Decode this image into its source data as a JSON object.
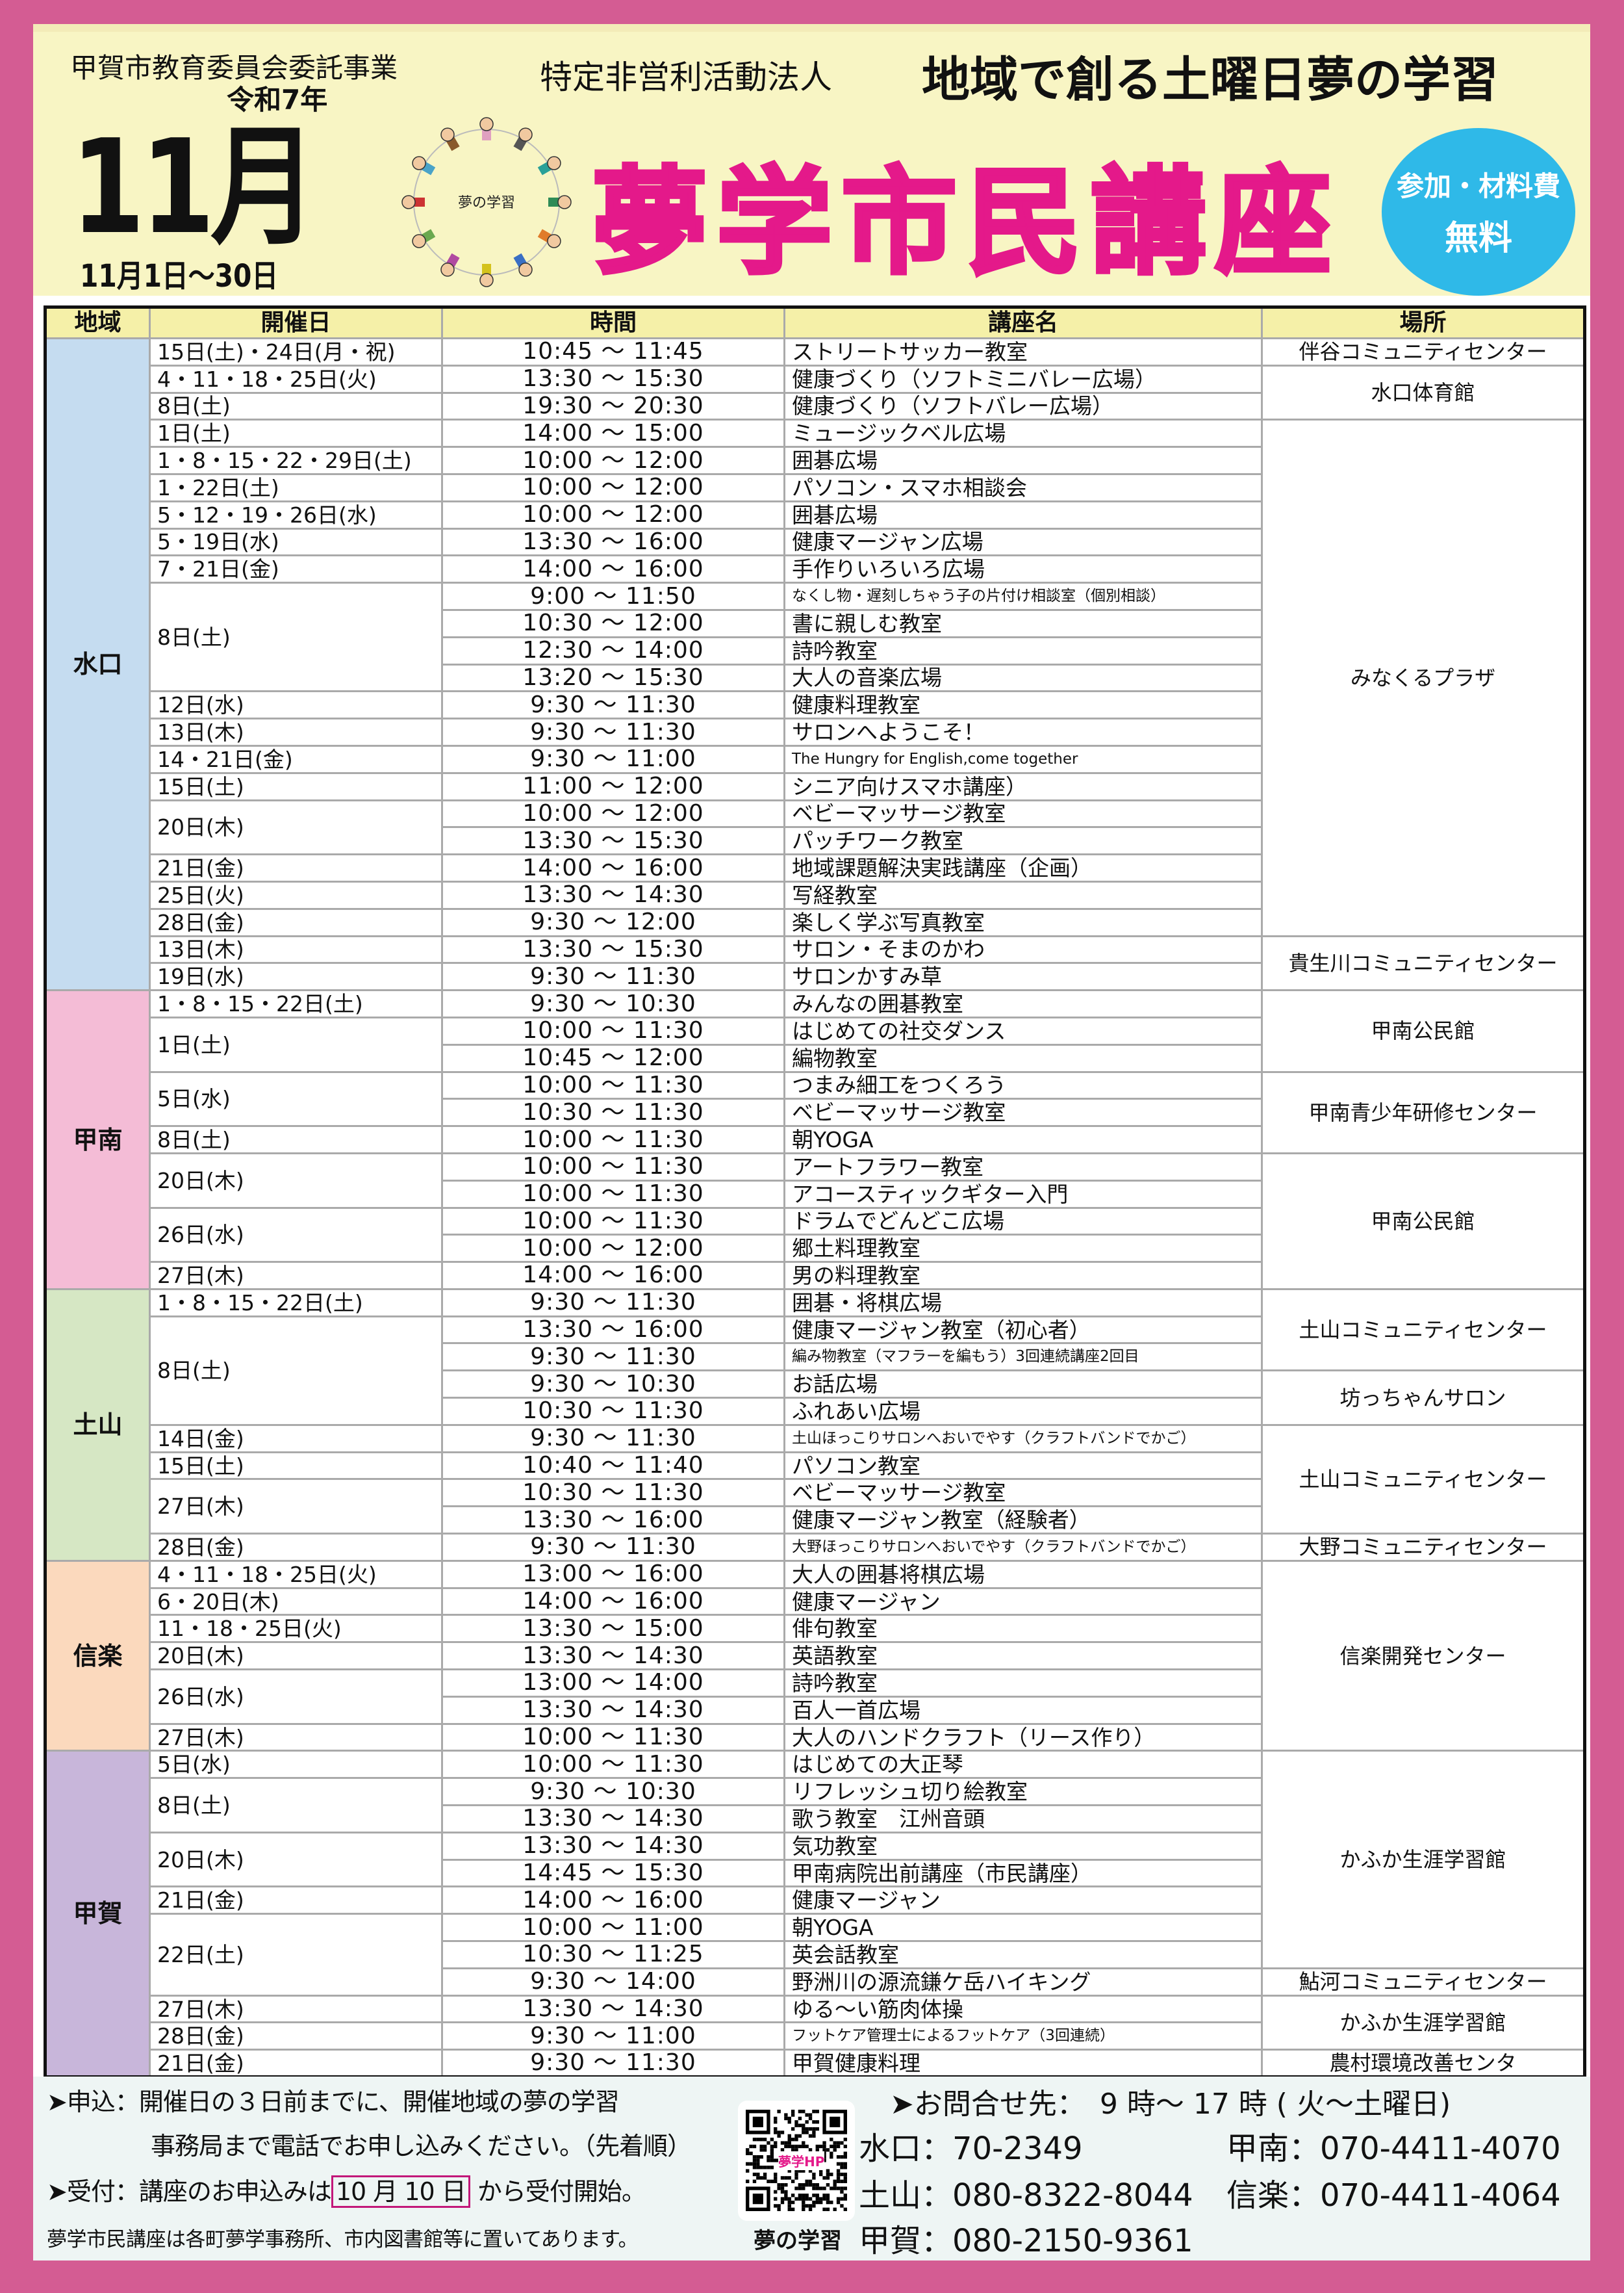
{
  "header": {
    "sponsor": "甲賀市教育委員会委託事業",
    "npo_prefix": "特定非営利活動法人",
    "organization": "地域で創る土曜日夢の学習",
    "era_year": "令和7年",
    "month": "11月",
    "date_range": "11月1日～30日",
    "logo_text": "夢の学習",
    "title": "夢学市民講座",
    "badge_line1": "参加・材料費",
    "badge_line2": "無料",
    "colors": {
      "border": "#d45c93",
      "title": "#e4198a",
      "badge": "#2fb9e8",
      "header_bg": "#f8f5c4"
    }
  },
  "table": {
    "columns": [
      "地域",
      "開催日",
      "時間",
      "講座名",
      "場所"
    ],
    "regions": [
      {
        "name": "水口",
        "color": "#c5dcf0",
        "rows": [
          {
            "date": "15日(土)・24日(月・祝)",
            "time": "10:45 ～ 11:45",
            "course": "ストリートサッカー教室",
            "place": "伴谷コミュニティセンター"
          },
          {
            "date": "4・11・18・25日(火)",
            "time": "13:30 ～ 15:30",
            "course": "健康づくり（ソフトミニバレー広場）",
            "place": "水口体育館"
          },
          {
            "date": "8日(土)",
            "time": "19:30 ～ 20:30",
            "course": "健康づくり（ソフトバレー広場）"
          },
          {
            "date": "1日(土)",
            "time": "14:00 ～ 15:00",
            "course": "ミュージックベル広場",
            "place": "みなくるプラザ"
          },
          {
            "date": "1・8・15・22・29日(土)",
            "time": "10:00 ～ 12:00",
            "course": "囲碁広場"
          },
          {
            "date": "1・22日(土)",
            "time": "10:00 ～ 12:00",
            "course": "パソコン・スマホ相談会"
          },
          {
            "date": "5・12・19・26日(水)",
            "time": "10:00 ～ 12:00",
            "course": "囲碁広場"
          },
          {
            "date": "5・19日(水)",
            "time": "13:30 ～ 16:00",
            "course": "健康マージャン広場"
          },
          {
            "date": "7・21日(金)",
            "time": "14:00 ～ 16:00",
            "course": "手作りいろいろ広場"
          },
          {
            "date": "8日(土)",
            "time": "9:00 ～ 11:50",
            "course": "なくし物・遅刻しちゃう子の片付け相談室（個別相談）"
          },
          {
            "time": "10:30 ～ 12:00",
            "course": "書に親しむ教室"
          },
          {
            "time": "12:30 ～ 14:00",
            "course": "詩吟教室"
          },
          {
            "time": "13:20 ～ 15:30",
            "course": "大人の音楽広場"
          },
          {
            "date": "12日(水)",
            "time": "9:30 ～ 11:30",
            "course": "健康料理教室"
          },
          {
            "date": "13日(木)",
            "time": "9:30 ～ 11:30",
            "course": "サロンへようこそ！"
          },
          {
            "date": "14・21日(金)",
            "time": "9:30 ～ 11:00",
            "course": "The Hungry for English,come together"
          },
          {
            "date": "15日(土)",
            "time": "11:00 ～ 12:00",
            "course": "シニア向けスマホ講座）"
          },
          {
            "date": "20日(木)",
            "time": "10:00 ～ 12:00",
            "course": "ベビーマッサージ教室"
          },
          {
            "time": "13:30 ～ 15:30",
            "course": "パッチワーク教室"
          },
          {
            "date": "21日(金)",
            "time": "14:00 ～ 16:00",
            "course": "地域課題解決実践講座（企画）"
          },
          {
            "date": "25日(火)",
            "time": "13:30 ～ 14:30",
            "course": "写経教室"
          },
          {
            "date": "28日(金)",
            "time": "9:30 ～ 12:00",
            "course": "楽しく学ぶ写真教室"
          },
          {
            "date": "13日(木)",
            "time": "13:30 ～ 15:30",
            "course": "サロン・そまのかわ",
            "place": "貴生川コミュニティセンター"
          },
          {
            "date": "19日(水)",
            "time": "9:30 ～ 11:30",
            "course": "サロンかすみ草"
          }
        ]
      },
      {
        "name": "甲南",
        "color": "#f4bcd6",
        "rows": [
          {
            "date": "1・8・15・22日(土)",
            "time": "9:30 ～ 10:30",
            "course": "みんなの囲碁教室",
            "place": "甲南公民館"
          },
          {
            "date": "1日(土)",
            "time": "10:00 ～ 11:30",
            "course": "はじめての社交ダンス"
          },
          {
            "time": "10:45 ～ 12:00",
            "course": "編物教室"
          },
          {
            "date": "5日(水)",
            "time": "10:00 ～ 11:30",
            "course": "つまみ細工をつくろう",
            "place": "甲南青少年研修センター"
          },
          {
            "time": "10:30 ～ 11:30",
            "course": "ベビーマッサージ教室"
          },
          {
            "date": "8日(土)",
            "time": "10:00 ～ 11:30",
            "course": "朝YOGA"
          },
          {
            "date": "20日(木)",
            "time": "10:00 ～ 11:30",
            "course": "アートフラワー教室",
            "place": "甲南公民館"
          },
          {
            "time": "10:00 ～ 11:30",
            "course": "アコースティックギター入門"
          },
          {
            "date": "26日(水)",
            "time": "10:00 ～ 11:30",
            "course": "ドラムでどんどこ広場"
          },
          {
            "time": "10:00 ～ 12:00",
            "course": "郷土料理教室"
          },
          {
            "date": "27日(木)",
            "time": "14:00 ～ 16:00",
            "course": "男の料理教室"
          }
        ]
      },
      {
        "name": "土山",
        "color": "#d6e7c4",
        "rows": [
          {
            "date": "1・8・15・22日(土)",
            "time": "9:30 ～ 11:30",
            "course": "囲碁・将棋広場",
            "place": "土山コミュニティセンター"
          },
          {
            "date": "8日(土)",
            "time": "13:30 ～ 16:00",
            "course": "健康マージャン教室（初心者）"
          },
          {
            "time": "9:30 ～ 11:30",
            "course": "編み物教室（マフラーを編もう）3回連続講座2回目"
          },
          {
            "time": "9:30 ～ 10:30",
            "course": "お話広場",
            "place": "坊っちゃんサロン"
          },
          {
            "time": "10:30 ～ 11:30",
            "course": "ふれあい広場"
          },
          {
            "date": "14日(金)",
            "time": "9:30 ～ 11:30",
            "course": "土山ほっこりサロンへおいでやす（クラフトバンドでかご）",
            "place": "土山コミュニティセンター"
          },
          {
            "date": "15日(土)",
            "time": "10:40 ～ 11:40",
            "course": "パソコン教室"
          },
          {
            "date": "27日(木)",
            "time": "10:30 ～ 11:30",
            "course": "ベビーマッサージ教室"
          },
          {
            "time": "13:30 ～ 16:00",
            "course": "健康マージャン教室（経験者）"
          },
          {
            "date": "28日(金)",
            "time": "9:30 ～ 11:30",
            "course": "大野ほっこりサロンへおいでやす（クラフトバンドでかご）",
            "place": "大野コミュニティセンター"
          }
        ]
      },
      {
        "name": "信楽",
        "color": "#fbd9bd",
        "rows": [
          {
            "date": "4・11・18・25日(火)",
            "time": "13:00 ～ 16:00",
            "course": "大人の囲碁将棋広場",
            "place": "信楽開発センター"
          },
          {
            "date": "6・20日(木)",
            "time": "14:00 ～ 16:00",
            "course": "健康マージャン"
          },
          {
            "date": "11・18・25日(火)",
            "time": "13:30 ～ 15:00",
            "course": "俳句教室"
          },
          {
            "date": "20日(木)",
            "time": "13:30 ～ 14:30",
            "course": "英語教室"
          },
          {
            "date": "26日(水)",
            "time": "13:00 ～ 14:00",
            "course": "詩吟教室"
          },
          {
            "time": "13:30 ～ 14:30",
            "course": "百人一首広場"
          },
          {
            "date": "27日(木)",
            "time": "10:00 ～ 11:30",
            "course": "大人のハンドクラフト（リース作り）"
          }
        ]
      },
      {
        "name": "甲賀",
        "color": "#c8b6da",
        "rows": [
          {
            "date": "5日(水)",
            "time": "10:00 ～ 11:30",
            "course": "はじめての大正琴",
            "place": "かふか生涯学習館"
          },
          {
            "date": "8日(土)",
            "time": "9:30 ～ 10:30",
            "course": "リフレッシュ切り絵教室"
          },
          {
            "time": "13:30 ～ 14:30",
            "course": "歌う教室　江州音頭"
          },
          {
            "date": "20日(木)",
            "time": "13:30 ～ 14:30",
            "course": "気功教室"
          },
          {
            "time": "14:45 ～ 15:30",
            "course": "甲南病院出前講座（市民講座）"
          },
          {
            "date": "21日(金)",
            "time": "14:00 ～ 16:00",
            "course": "健康マージャン"
          },
          {
            "date": "22日(土)",
            "time": "10:00 ～ 11:00",
            "course": "朝YOGA"
          },
          {
            "time": "10:30 ～ 11:25",
            "course": "英会話教室"
          },
          {
            "time": "9:30 ～ 14:00",
            "course": "野洲川の源流鎌ケ岳ハイキング",
            "place": "鮎河コミュニティセンター"
          },
          {
            "date": "27日(木)",
            "time": "13:30 ～ 14:30",
            "course": "ゆる～い筋肉体操",
            "place": "かふか生涯学習館"
          },
          {
            "date": "28日(金)",
            "time": "9:30 ～ 11:00",
            "course": "フットケア管理士によるフットケア（3回連続）"
          },
          {
            "date": "21日(金)",
            "time": "9:30 ～ 11:30",
            "course": "甲賀健康料理",
            "place": "農村環境改善センタ"
          }
        ]
      }
    ]
  },
  "footer": {
    "apply_line1": "➤申込：開催日の３日前までに、開催地域の夢の学習",
    "apply_line2": "事務局まで電話でお申し込みください。（先着順）",
    "accept_prefix": "➤受付：講座のお申込みは",
    "accept_date": "10 月 10 日",
    "accept_suffix": "から受付開始。",
    "note": "夢学市民講座は各町夢学事務所、市内図書館等に置いてあります。",
    "qr_label": "夢学HP",
    "qr_caption": "夢の学習",
    "contact_heading": "➤お問合せ先：　9 時～ 17 時 ( 火～土曜日)",
    "contacts": [
      {
        "area": "水口",
        "phone": "70-2349"
      },
      {
        "area": "甲南",
        "phone": "070-4411-4070"
      },
      {
        "area": "土山",
        "phone": "080-8322-8044"
      },
      {
        "area": "信楽",
        "phone": "070-4411-4064"
      },
      {
        "area": "甲賀",
        "phone": "080-2150-9361"
      }
    ]
  }
}
